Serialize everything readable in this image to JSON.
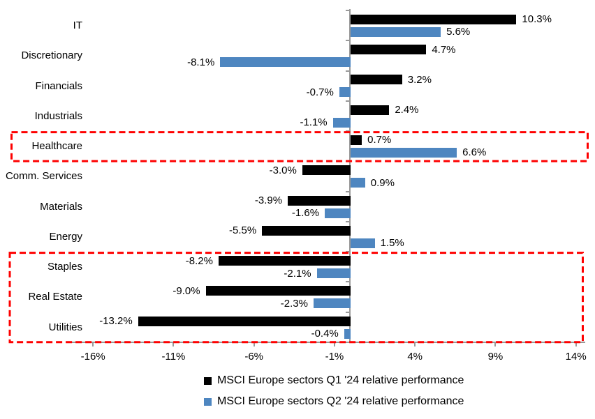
{
  "chart_data": {
    "type": "bar",
    "orientation": "horizontal",
    "title": "",
    "categories": [
      "IT",
      "Discretionary",
      "Financials",
      "Industrials",
      "Healthcare",
      "Comm. Services",
      "Materials",
      "Energy",
      "Staples",
      "Real Estate",
      "Utilities"
    ],
    "series": [
      {
        "name": "MSCI Europe sectors Q1 '24 relative performance",
        "color": "#000000",
        "values": [
          10.3,
          4.7,
          3.2,
          2.4,
          0.7,
          -3.0,
          -3.9,
          -5.5,
          -8.2,
          -9.0,
          -13.2
        ],
        "labels": [
          "10.3%",
          "4.7%",
          "3.2%",
          "2.4%",
          "0.7%",
          "-3.0%",
          "-3.9%",
          "-5.5%",
          "-8.2%",
          "-9.0%",
          "-13.2%"
        ]
      },
      {
        "name": "MSCI Europe sectors Q2 '24 relative performance",
        "color": "#4E86C0",
        "values": [
          5.6,
          -8.1,
          -0.7,
          -1.1,
          6.6,
          0.9,
          -1.6,
          1.5,
          -2.1,
          -2.3,
          -0.4
        ],
        "labels": [
          "5.6%",
          "-8.1%",
          "-0.7%",
          "-1.1%",
          "6.6%",
          "0.9%",
          "-1.6%",
          "1.5%",
          "-2.1%",
          "-2.3%",
          "-0.4%"
        ]
      }
    ],
    "x_axis": {
      "unit": "%",
      "min": -17.7,
      "max": 14.6,
      "tick_values": [
        -16,
        -11,
        -6,
        -1,
        4,
        9,
        14
      ],
      "tick_labels": [
        "-16%",
        "-11%",
        "-6%",
        "-1%",
        "4%",
        "9%",
        "14%"
      ]
    },
    "grid": "off",
    "legend": {
      "position": "bottom",
      "marker": "square"
    },
    "annotations": {
      "highlight_boxes": [
        {
          "rows": [
            "Healthcare"
          ],
          "style": "dashed",
          "color": "#FE0000"
        },
        {
          "rows": [
            "Staples",
            "Real Estate",
            "Utilities"
          ],
          "style": "dashed",
          "color": "#FE0000"
        }
      ]
    },
    "colors": {
      "q1_bar": "#000000",
      "q2_bar": "#4E86C0",
      "axis": "#999999",
      "highlight": "#FE0000",
      "text": "#000000"
    }
  }
}
